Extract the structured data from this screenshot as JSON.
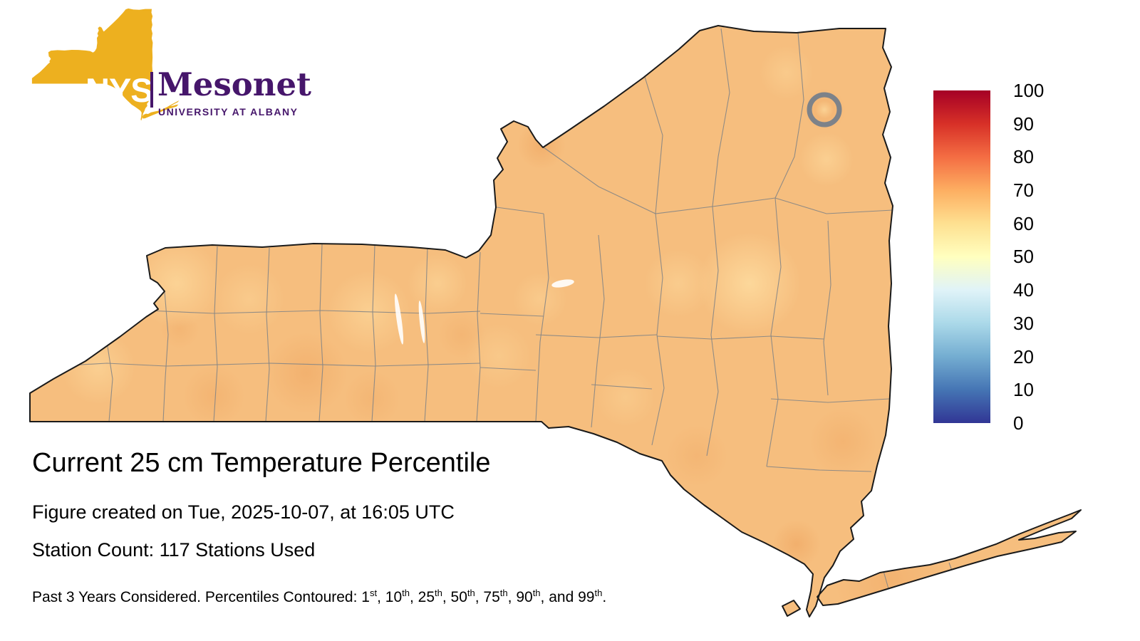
{
  "logo": {
    "acronym": "NYS",
    "name": "Mesonet",
    "subtitle": "UNIVERSITY AT ALBANY"
  },
  "figure": {
    "title": "Current 25 cm Temperature Percentile",
    "created_line": "Figure created on Tue, 2025-10-07, at 16:05 UTC",
    "station_line": "Station Count: 117 Stations Used"
  },
  "footnote": {
    "segments": [
      {
        "text": "Past 3 Years Considered. Percentiles Contoured: 1",
        "sup": "st"
      },
      {
        "text": ", 10",
        "sup": "th"
      },
      {
        "text": ", 25",
        "sup": "th"
      },
      {
        "text": ", 50",
        "sup": "th"
      },
      {
        "text": ", 75",
        "sup": "th"
      },
      {
        "text": ", 90",
        "sup": "th"
      },
      {
        "text": ", and 99",
        "sup": "th"
      },
      {
        "text": "."
      }
    ]
  },
  "colorbar": {
    "ticks": [
      "100",
      "90",
      "80",
      "70",
      "60",
      "50",
      "40",
      "30",
      "20",
      "10",
      "0"
    ],
    "stops": [
      "#313695",
      "#4575b4",
      "#74add1",
      "#abd9e9",
      "#e0f3f8",
      "#ffffbf",
      "#fee090",
      "#fdae61",
      "#f46d43",
      "#d73027",
      "#a50026"
    ]
  },
  "colors": {
    "background": "#FFFFFF",
    "text": "#000000",
    "logo_gold": "#EDB01F",
    "logo_purple": "#46166B",
    "map_base": "#F6BE7E",
    "map_border": "#1A1A1A",
    "county_line": "#858585",
    "marker_gray": "#7D8289"
  }
}
